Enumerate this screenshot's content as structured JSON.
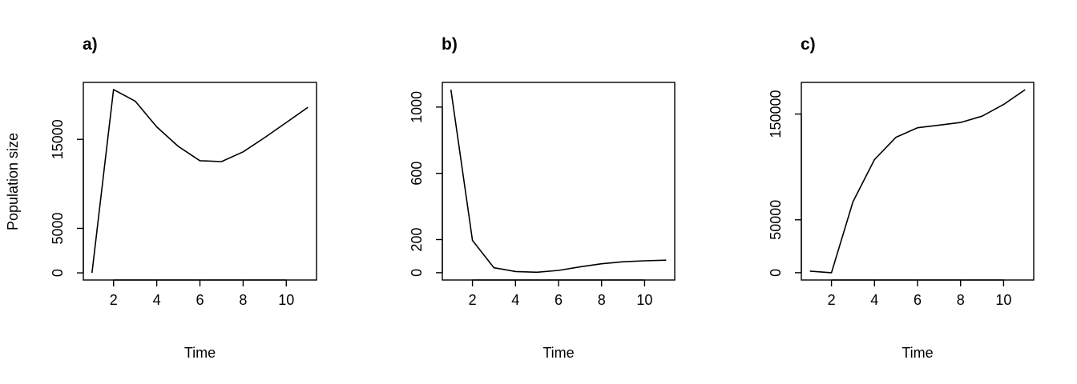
{
  "chart_data": [
    {
      "type": "line",
      "title": "a)",
      "xlabel": "Time",
      "ylabel": "Population size",
      "x": [
        1,
        2,
        3,
        4,
        5,
        6,
        7,
        8,
        9,
        10,
        11
      ],
      "series": [
        {
          "values": [
            0,
            20600,
            19300,
            16400,
            14200,
            12600,
            12500,
            13600,
            15200,
            16900,
            18600
          ]
        }
      ],
      "xticks": [
        2,
        4,
        6,
        8,
        10
      ],
      "yticks": [
        0,
        5000,
        15000
      ],
      "xlim": [
        0.6,
        11.4
      ],
      "ylim": [
        -800,
        21400
      ],
      "grid": false,
      "legend": "none"
    },
    {
      "type": "line",
      "title": "b)",
      "xlabel": "Time",
      "ylabel": "",
      "x": [
        1,
        2,
        3,
        4,
        5,
        6,
        7,
        8,
        9,
        10,
        11
      ],
      "series": [
        {
          "values": [
            1105,
            195,
            30,
            7,
            3,
            14,
            35,
            54,
            66,
            72,
            76
          ]
        }
      ],
      "xticks": [
        2,
        4,
        6,
        8,
        10
      ],
      "yticks": [
        0,
        200,
        600,
        1000
      ],
      "xlim": [
        0.6,
        11.4
      ],
      "ylim": [
        -44,
        1149
      ],
      "grid": false,
      "legend": "none"
    },
    {
      "type": "line",
      "title": "c)",
      "xlabel": "Time",
      "ylabel": "",
      "x": [
        1,
        2,
        3,
        4,
        5,
        6,
        7,
        8,
        9,
        10,
        11
      ],
      "series": [
        {
          "values": [
            1500,
            0,
            67000,
            107000,
            128000,
            137000,
            139500,
            142000,
            148000,
            159000,
            173000
          ]
        }
      ],
      "xticks": [
        2,
        4,
        6,
        8,
        10
      ],
      "yticks": [
        0,
        50000,
        150000
      ],
      "xlim": [
        0.6,
        11.4
      ],
      "ylim": [
        -6900,
        179900
      ],
      "grid": false,
      "legend": "none"
    }
  ]
}
